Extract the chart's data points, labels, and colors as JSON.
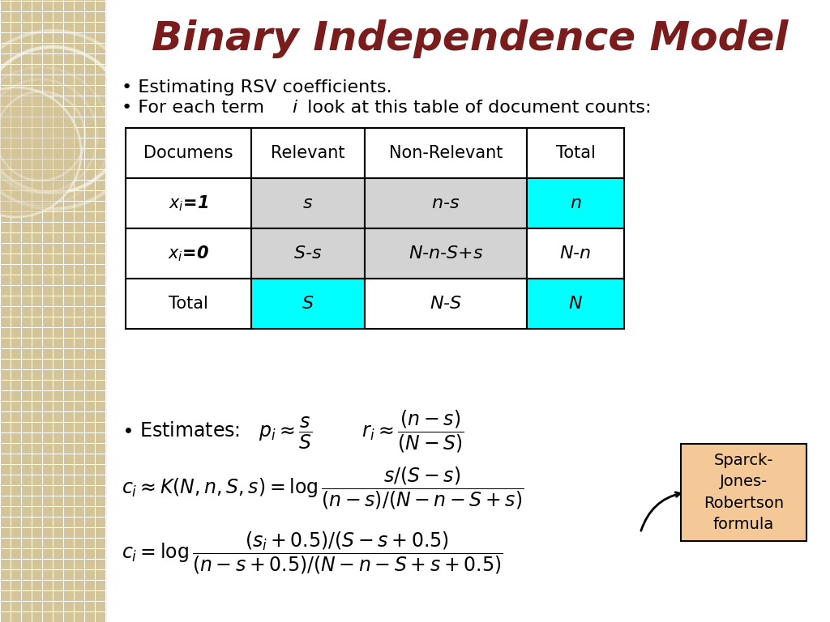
{
  "title": "Binary Independence Model",
  "title_color": "#7B1C1C",
  "title_fontsize": 36,
  "bg_color": "#FFFFFF",
  "left_panel_color": "#D4C49A",
  "bullet1": "Estimating RSV coefficients.",
  "bullet2": "For each term ",
  "bullet2b": " look at this table of document counts:",
  "table_headers": [
    "Documens",
    "Relevant",
    "Non-Relevant",
    "Total"
  ],
  "table_rows": [
    [
      "$\\mathbf{\\textit{x}_i=1}$",
      "$s$",
      "$n$-$s$",
      "$n$"
    ],
    [
      "$\\mathbf{\\textit{x}_i=0}$",
      "$S$-$s$",
      "$N$-$n$-$S$+$s$",
      "$N$-$n$"
    ],
    [
      "Total",
      "$S$",
      "$N$-$S$",
      "$N$"
    ]
  ],
  "cyan_color": "#00FFFF",
  "gray_color": "#D3D3D3",
  "white_color": "#FFFFFF",
  "sparck_box_color": "#F5C898",
  "sparck_text": "Sparck-\nJones-\nRobertson\nformula"
}
